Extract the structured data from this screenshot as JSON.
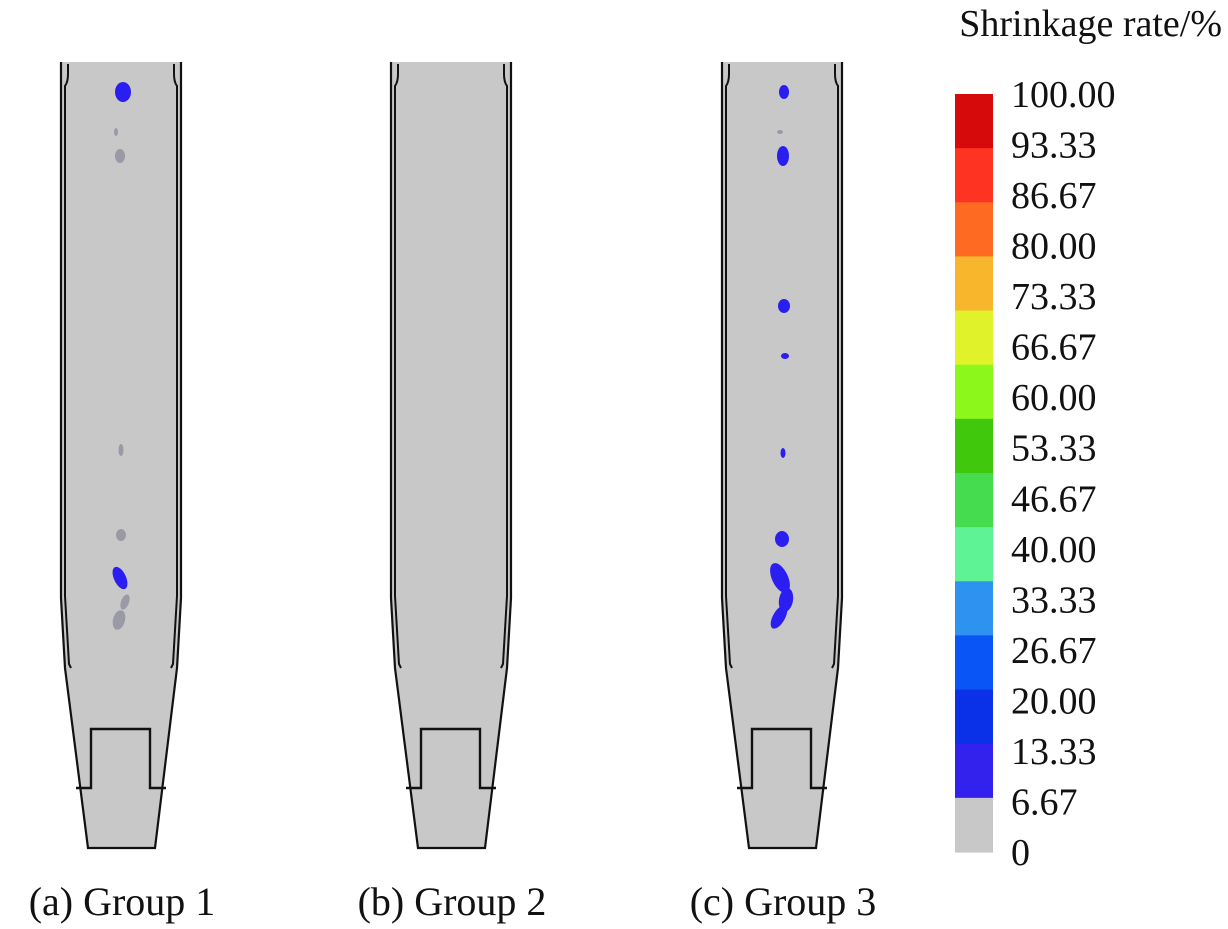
{
  "legend": {
    "title": "Shrinkage rate/%",
    "ticks": [
      "100.00",
      "93.33",
      "86.67",
      "80.00",
      "73.33",
      "66.67",
      "60.00",
      "53.33",
      "46.67",
      "40.00",
      "33.33",
      "26.67",
      "20.00",
      "13.33",
      "6.67",
      "0"
    ],
    "band_colors": [
      "#d60a0a",
      "#ff3322",
      "#ff6a22",
      "#f7b62c",
      "#dff22a",
      "#8cf71a",
      "#3fc80c",
      "#45dd4f",
      "#5ef496",
      "#2e92f0",
      "#0a55f5",
      "#0a31e8",
      "#3322ee",
      "#c8c8c8"
    ]
  },
  "panels": [
    {
      "caption": "(a) Group 1"
    },
    {
      "caption": "(b) Group 2"
    },
    {
      "caption": "(c) Group 3"
    }
  ],
  "colors": {
    "body_fill": "#c8c8c8",
    "outline": "#111111",
    "defect_blue": "#2a1ef0",
    "defect_gray": "#9a9aa6"
  }
}
